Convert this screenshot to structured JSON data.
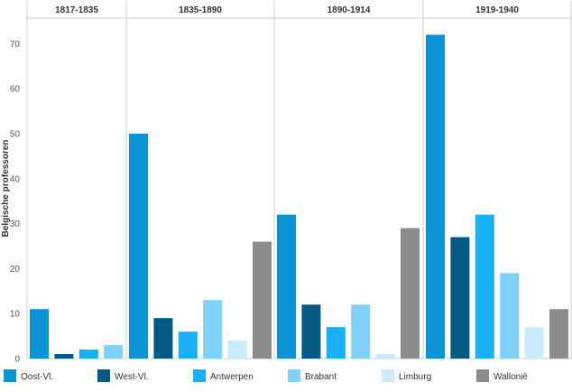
{
  "chart_data": {
    "type": "bar",
    "ylabel": "Belgische professoren",
    "ylim": [
      0,
      75
    ],
    "yticks": [
      0,
      10,
      20,
      30,
      40,
      50,
      60,
      70
    ],
    "grid": false,
    "legend_position": "bottom",
    "panels": [
      {
        "title": "1817-1835",
        "values": [
          11,
          1,
          2,
          3,
          null,
          null
        ]
      },
      {
        "title": "1835-1890",
        "values": [
          50,
          9,
          6,
          13,
          4,
          26
        ]
      },
      {
        "title": "1890-1914",
        "values": [
          32,
          12,
          7,
          12,
          1,
          29
        ]
      },
      {
        "title": "1919-1940",
        "values": [
          72,
          27,
          32,
          19,
          7,
          11
        ]
      }
    ],
    "series": [
      {
        "name": "Oost-Vl.",
        "color": "#0a93d5"
      },
      {
        "name": "West-Vl.",
        "color": "#035a82"
      },
      {
        "name": "Antwerpen",
        "color": "#19b1f5"
      },
      {
        "name": "Brabant",
        "color": "#7fd1f9"
      },
      {
        "name": "Limburg",
        "color": "#c8ecfd"
      },
      {
        "name": "Wallonië",
        "color": "#8c8c8c"
      }
    ]
  }
}
